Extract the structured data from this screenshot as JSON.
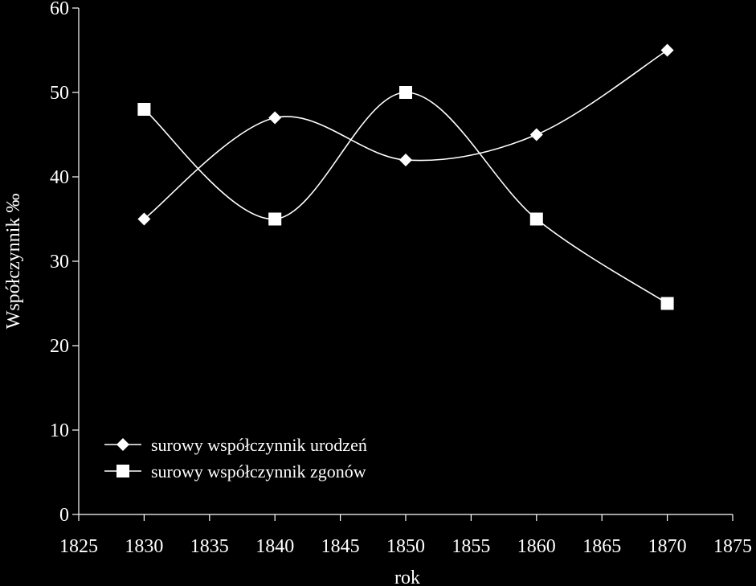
{
  "chart_data": {
    "type": "line",
    "title": "",
    "xlabel": "rok",
    "ylabel": "Współczynnik ‰",
    "xlim": [
      1825,
      1875
    ],
    "ylim": [
      0,
      60
    ],
    "xticks": [
      1825,
      1830,
      1835,
      1840,
      1845,
      1850,
      1855,
      1860,
      1865,
      1870,
      1875
    ],
    "yticks": [
      0,
      10,
      20,
      30,
      40,
      50,
      60
    ],
    "smooth": true,
    "grid": false,
    "legend_position": "bottom-left",
    "x": [
      1830,
      1840,
      1850,
      1860,
      1870
    ],
    "series": [
      {
        "name": "surowy współczynnik urodzeń",
        "marker": "diamond",
        "values": [
          35,
          47,
          42,
          45,
          55
        ]
      },
      {
        "name": "surowy współczynnik zgonów",
        "marker": "square",
        "values": [
          48,
          35,
          50,
          35,
          25
        ]
      }
    ],
    "colors": {
      "background": "#000000",
      "foreground": "#ffffff"
    }
  }
}
